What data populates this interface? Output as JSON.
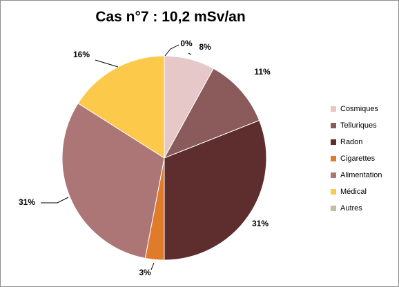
{
  "chart_data": {
    "type": "pie",
    "title": "Cas n°7 : 10,2 mSv/an",
    "categories": [
      "Cosmiques",
      "Telluriques",
      "Radon",
      "Cigarettes",
      "Alimentation",
      "Médical",
      "Autres"
    ],
    "values": [
      8,
      11,
      31,
      3,
      31,
      16,
      0
    ],
    "data_labels": [
      "8%",
      "11%",
      "31%",
      "3%",
      "31%",
      "16%",
      "0%"
    ],
    "colors": [
      "#e6c8c8",
      "#8b5a5a",
      "#5e2e2e",
      "#e07b2a",
      "#ad7676",
      "#fdc94a",
      "#c4bca8"
    ],
    "legend_position": "right",
    "start_angle": "12 o'clock",
    "direction": "clockwise"
  }
}
